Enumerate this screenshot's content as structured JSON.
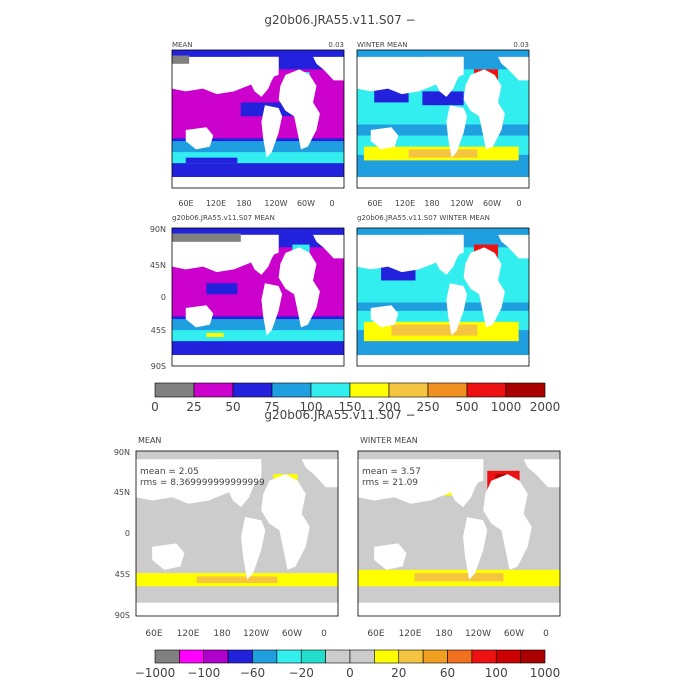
{
  "top": {
    "title": "g20b06.JRA55.v11.S07 −",
    "panels": [
      {
        "label": "MEAN",
        "value": "0.03"
      },
      {
        "label": "WINTER MEAN",
        "value": "0.03"
      },
      {
        "label": "g20b06.JRA55.v11.S07 MEAN",
        "value": ""
      },
      {
        "label": "g20b06.JRA55.v11.S07 WINTER MEAN",
        "value": ""
      }
    ],
    "colorbar_labels": [
      "0",
      "25",
      "50",
      "75",
      "100",
      "150",
      "200",
      "250",
      "500",
      "1000",
      "2000"
    ],
    "colorbar_colors": [
      "#808080",
      "#cc00cc",
      "#2222dd",
      "#1f9fe0",
      "#33eeee",
      "#ffff00",
      "#f5c542",
      "#f09020",
      "#ee1111",
      "#aa0000"
    ]
  },
  "bottom": {
    "title": "g20b06.JRA55.v11.S07 −",
    "panels": [
      {
        "label": "MEAN",
        "mean": "mean = 2.05",
        "rms": "rms = 8.369999999999999"
      },
      {
        "label": "WINTER MEAN",
        "mean": "mean = 3.57",
        "rms": "rms = 21.09"
      }
    ],
    "colorbar_labels": [
      "−1000",
      "−100",
      "−60",
      "−20",
      "0",
      "20",
      "60",
      "100",
      "1000"
    ],
    "colorbar_colors": [
      "#808080",
      "#ff00ff",
      "#b000cc",
      "#2222dd",
      "#1f9fe0",
      "#33eeee",
      "#22ddcc",
      "#cccccc",
      "#cccccc",
      "#ffff00",
      "#f5c542",
      "#f0a020",
      "#f07020",
      "#ee1111",
      "#cc0000",
      "#aa0000"
    ]
  },
  "axes": {
    "lon_ticks": [
      "60E",
      "120E",
      "180",
      "120W",
      "60W",
      "0"
    ],
    "lat_ticks": [
      "90N",
      "45N",
      "0",
      "45S",
      "90S"
    ]
  },
  "chart_data": [
    {
      "type": "heatmap",
      "title": "MEAN",
      "xlabel": "",
      "ylabel": "",
      "colorbar": [
        "0",
        "25",
        "50",
        "75",
        "100",
        "150",
        "200",
        "250",
        "500",
        "1000",
        "2000"
      ]
    },
    {
      "type": "heatmap",
      "title": "WINTER MEAN",
      "xlabel": "",
      "ylabel": "",
      "colorbar": [
        "0",
        "25",
        "50",
        "75",
        "100",
        "150",
        "200",
        "250",
        "500",
        "1000",
        "2000"
      ]
    },
    {
      "type": "heatmap",
      "title": "g20b06.JRA55.v11.S07 MEAN",
      "x_ticks": [
        "60E",
        "120E",
        "180",
        "120W",
        "60W",
        "0"
      ],
      "y_ticks": [
        "90N",
        "45N",
        "0",
        "45S",
        "90S"
      ]
    },
    {
      "type": "heatmap",
      "title": "g20b06.JRA55.v11.S07 WINTER MEAN",
      "x_ticks": [
        "60E",
        "120E",
        "180",
        "120W",
        "60W",
        "0"
      ]
    },
    {
      "type": "heatmap",
      "title": "MEAN",
      "annotations": [
        "mean = 2.05",
        "rms = 8.369999999999999"
      ],
      "colorbar": [
        "−1000",
        "−100",
        "−60",
        "−20",
        "0",
        "20",
        "60",
        "100",
        "1000"
      ]
    },
    {
      "type": "heatmap",
      "title": "WINTER MEAN",
      "annotations": [
        "mean = 3.57",
        "rms = 21.09"
      ]
    }
  ]
}
